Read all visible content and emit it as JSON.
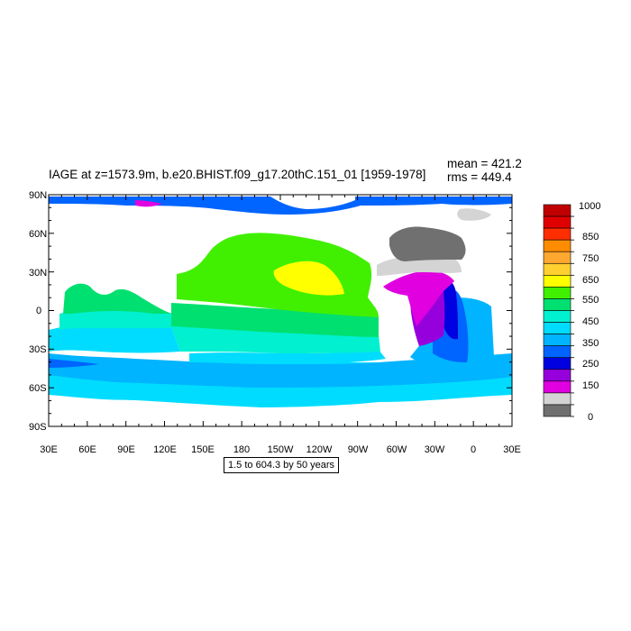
{
  "title": "IAGE at z=1573.9m, b.e20.BHIST.f09_g17.20thC.151_01 [1959-1978]",
  "stats": {
    "mean": "mean = 421.2",
    "rms": "rms = 449.4"
  },
  "range_note": "1.5 to 604.3 by 50 years",
  "lat_labels": [
    "90N",
    "60N",
    "30N",
    "0",
    "30S",
    "60S",
    "90S"
  ],
  "lon_labels": [
    "30E",
    "60E",
    "90E",
    "120E",
    "150E",
    "180",
    "150W",
    "120W",
    "90W",
    "60W",
    "30W",
    "0",
    "30E"
  ],
  "colorbar": {
    "labels": [
      "1000",
      "850",
      "750",
      "650",
      "550",
      "450",
      "350",
      "250",
      "150",
      "0"
    ],
    "colors": [
      "#c00000",
      "#e00000",
      "#ff2e00",
      "#ff8c00",
      "#ffa830",
      "#ffd030",
      "#ffff00",
      "#40f000",
      "#00e070",
      "#00f0d0",
      "#00dcff",
      "#00b4ff",
      "#0064ff",
      "#0000e0",
      "#9600dc",
      "#e000e0",
      "#d4d4d4",
      "#707070"
    ]
  },
  "colors": {
    "land": "#ffffff",
    "light_blue": "#00b4ff",
    "cyan": "#00dcff",
    "aqua": "#00f0d0",
    "spring_green": "#00e070",
    "green": "#40f000",
    "yellow": "#ffff00",
    "blue": "#0064ff",
    "dark_blue": "#0000e0",
    "purple": "#9600dc",
    "magenta": "#e000e0",
    "light_gray": "#d4d4d4",
    "dark_gray": "#707070"
  }
}
